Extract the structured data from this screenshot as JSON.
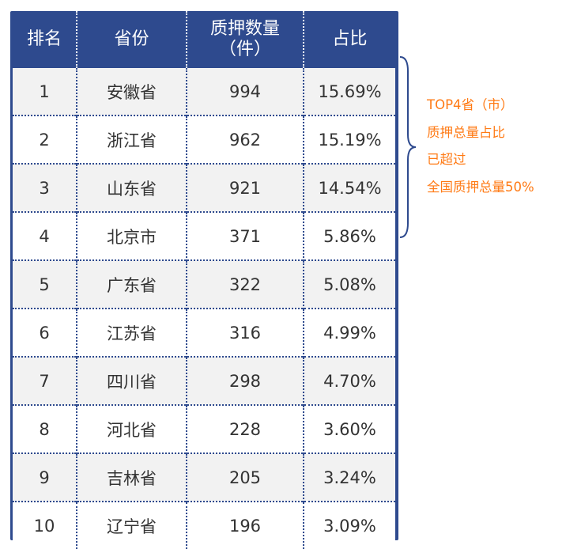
{
  "chart_data": {
    "type": "table",
    "columns": [
      "排名",
      "省份",
      "质押数量（件）",
      "占比"
    ],
    "header": {
      "rank": "排名",
      "province": "省份",
      "count_line1": "质押数量",
      "count_line2": "（件）",
      "share": "占比"
    },
    "rows": [
      {
        "rank": "1",
        "province": "安徽省",
        "count": "994",
        "share": "15.69%"
      },
      {
        "rank": "2",
        "province": "浙江省",
        "count": "962",
        "share": "15.19%"
      },
      {
        "rank": "3",
        "province": "山东省",
        "count": "921",
        "share": "14.54%"
      },
      {
        "rank": "4",
        "province": "北京市",
        "count": "371",
        "share": "5.86%"
      },
      {
        "rank": "5",
        "province": "广东省",
        "count": "322",
        "share": "5.08%"
      },
      {
        "rank": "6",
        "province": "江苏省",
        "count": "316",
        "share": "4.99%"
      },
      {
        "rank": "7",
        "province": "四川省",
        "count": "298",
        "share": "4.70%"
      },
      {
        "rank": "8",
        "province": "河北省",
        "count": "228",
        "share": "3.60%"
      },
      {
        "rank": "9",
        "province": "吉林省",
        "count": "205",
        "share": "3.24%"
      },
      {
        "rank": "10",
        "province": "辽宁省",
        "count": "196",
        "share": "3.09%"
      }
    ],
    "annotation": [
      "TOP4省（市）",
      "质押总量占比",
      "已超过",
      "全国质押总量50%"
    ]
  },
  "colors": {
    "header": "#2E4A8E",
    "stripe": "#F2F2F2",
    "annotation": "#FF7A14"
  }
}
